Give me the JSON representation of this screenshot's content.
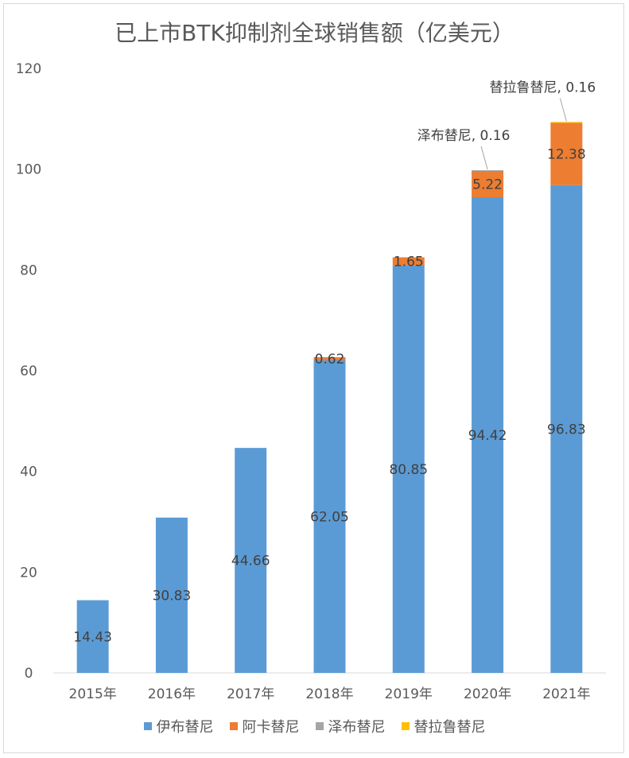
{
  "chart_data": {
    "type": "bar",
    "stacked": true,
    "title": "已上市BTK抑制剂全球销售额（亿美元）",
    "categories": [
      "2015年",
      "2016年",
      "2017年",
      "2018年",
      "2019年",
      "2020年",
      "2021年"
    ],
    "ylim": [
      0,
      120
    ],
    "yticks": [
      0,
      20,
      40,
      60,
      80,
      100,
      120
    ],
    "grid": false,
    "legend_position": "bottom",
    "series": [
      {
        "name": "伊布替尼",
        "color": "#5B9BD5",
        "values": [
          14.43,
          30.83,
          44.66,
          62.05,
          80.85,
          94.42,
          96.83
        ]
      },
      {
        "name": "阿卡替尼",
        "color": "#ED7D31",
        "values": [
          0,
          0,
          0,
          0.62,
          1.65,
          5.22,
          12.38
        ]
      },
      {
        "name": "泽布替尼",
        "color": "#A5A5A5",
        "values": [
          0,
          0,
          0,
          0,
          0,
          0.16,
          0
        ]
      },
      {
        "name": "替拉鲁替尼",
        "color": "#FFC000",
        "values": [
          0,
          0,
          0,
          0,
          0,
          0,
          0.16
        ]
      }
    ],
    "data_labels": [
      {
        "series": 0,
        "index": 0,
        "text": "14.43"
      },
      {
        "series": 0,
        "index": 1,
        "text": "30.83"
      },
      {
        "series": 0,
        "index": 2,
        "text": "44.66"
      },
      {
        "series": 0,
        "index": 3,
        "text": "62.05"
      },
      {
        "series": 0,
        "index": 4,
        "text": "80.85"
      },
      {
        "series": 0,
        "index": 5,
        "text": "94.42"
      },
      {
        "series": 0,
        "index": 6,
        "text": "96.83"
      },
      {
        "series": 1,
        "index": 3,
        "text": "0.62"
      },
      {
        "series": 1,
        "index": 4,
        "text": "1.65"
      },
      {
        "series": 1,
        "index": 5,
        "text": "5.22"
      },
      {
        "series": 1,
        "index": 6,
        "text": "12.38"
      }
    ],
    "callouts": [
      {
        "series": 2,
        "index": 5,
        "text": "泽布替尼, 0.16"
      },
      {
        "series": 3,
        "index": 6,
        "text": "替拉鲁替尼, 0.16"
      }
    ]
  }
}
